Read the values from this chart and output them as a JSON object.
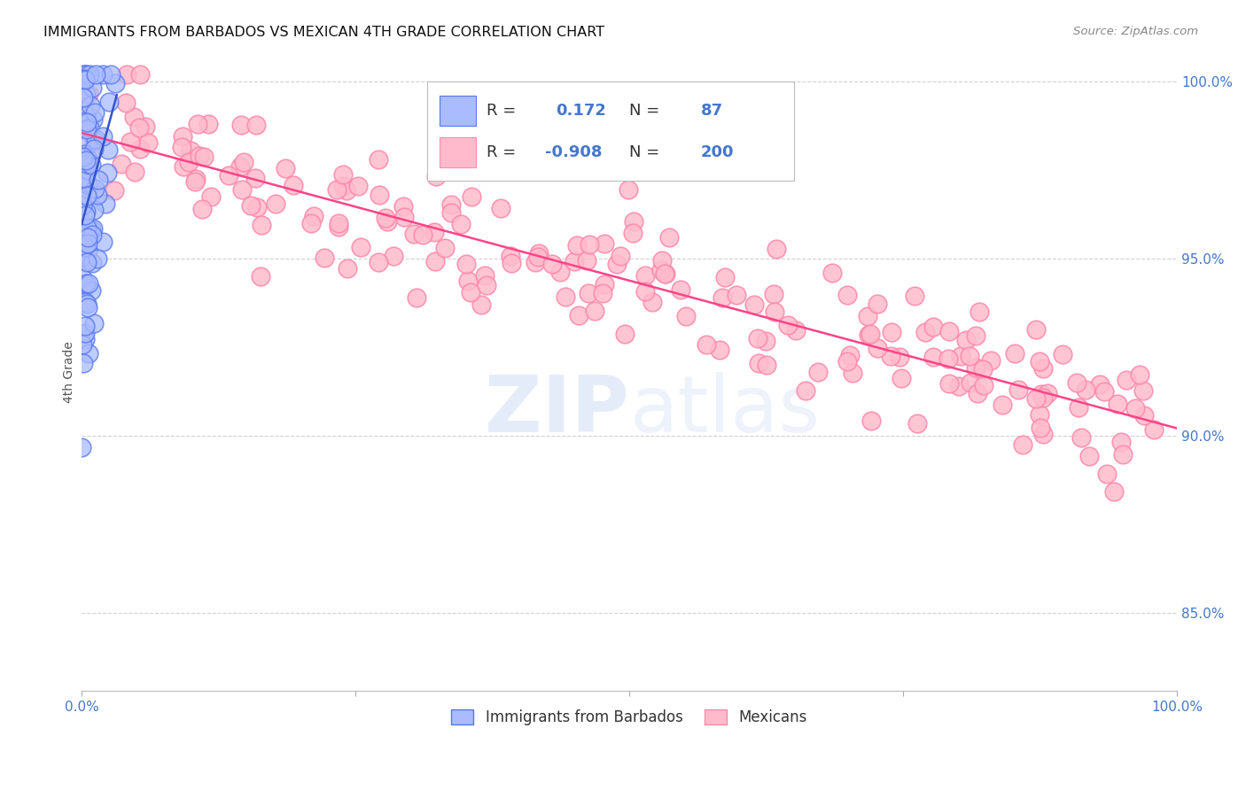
{
  "title": "IMMIGRANTS FROM BARBADOS VS MEXICAN 4TH GRADE CORRELATION CHART",
  "source": "Source: ZipAtlas.com",
  "ylabel": "4th Grade",
  "xlim": [
    0.0,
    1.0
  ],
  "ylim": [
    0.828,
    1.008
  ],
  "yticks": [
    0.85,
    0.9,
    0.95,
    1.0
  ],
  "ytick_labels": [
    "85.0%",
    "90.0%",
    "95.0%",
    "100.0%"
  ],
  "watermark_zip": "ZIP",
  "watermark_atlas": "atlas",
  "barbados_color": "#aabbff",
  "barbados_edge": "#5577ee",
  "mexican_color": "#ffbbcc",
  "mexican_edge": "#ff88aa",
  "trend_blue": "#3355cc",
  "trend_pink": "#ff4488",
  "R_barbados": 0.172,
  "N_barbados": 87,
  "R_mexican": -0.908,
  "N_mexican": 200,
  "legend_labels": [
    "Immigrants from Barbados",
    "Mexicans"
  ],
  "background_color": "#ffffff",
  "grid_color": "#cccccc",
  "axis_label_color": "#4477cc",
  "title_color": "#111111"
}
